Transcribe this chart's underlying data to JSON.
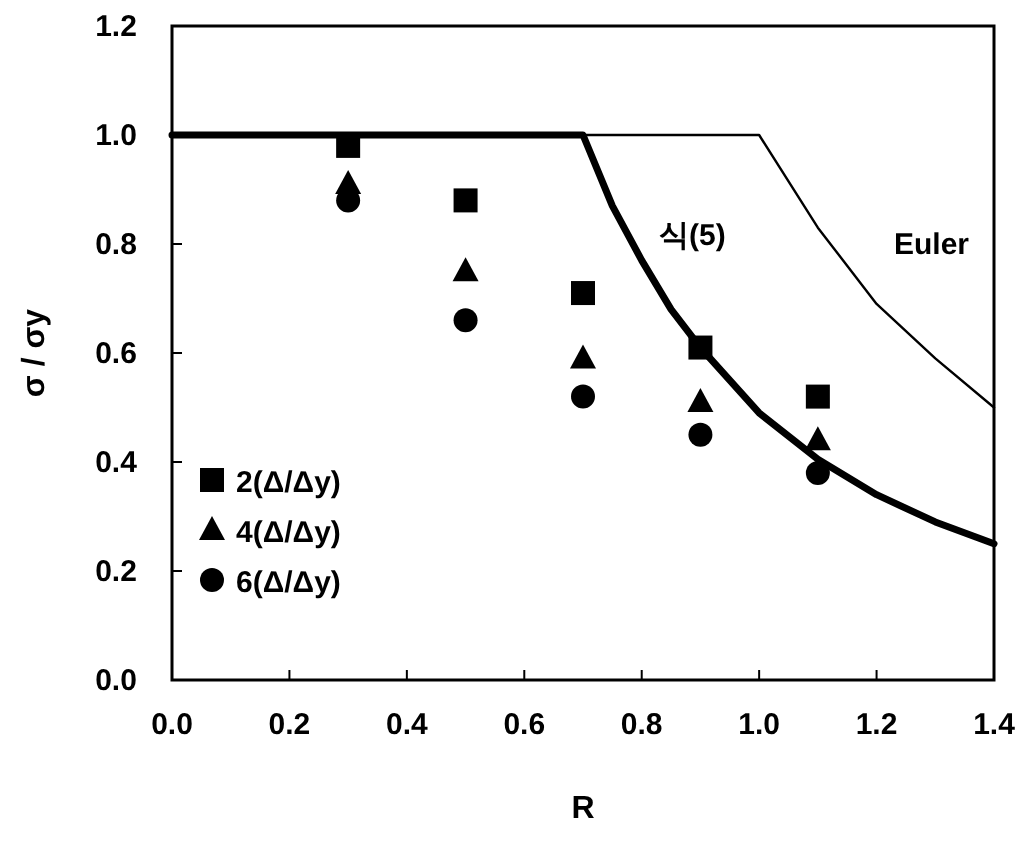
{
  "chart_data": {
    "type": "scatter",
    "xlabel": "R",
    "ylabel": "σ / σy",
    "xlim": [
      0,
      1.4
    ],
    "ylim": [
      0,
      1.2
    ],
    "xticks": [
      {
        "value": 0,
        "label": "0.0"
      },
      0.2,
      0.4,
      0.6,
      0.8,
      {
        "value": 1,
        "label": "1.0"
      },
      1.2,
      1.4
    ],
    "yticks": [
      {
        "value": 0,
        "label": "0.0"
      },
      0.2,
      0.4,
      0.6,
      0.8,
      {
        "value": 1,
        "label": "1.0"
      },
      1.2
    ],
    "grid": false,
    "legend": "bottom left",
    "series": [
      {
        "name": "2(Δ/Δy)",
        "color": "#000000",
        "marker": "square",
        "x": [
          0.3,
          0.5,
          0.7,
          0.9,
          1.1
        ],
        "values": [
          0.98,
          0.88,
          0.71,
          0.61,
          0.52
        ]
      },
      {
        "name": "4(Δ/Δy)",
        "color": "#000000",
        "marker": "triangle",
        "x": [
          0.3,
          0.5,
          0.7,
          0.9,
          1.1
        ],
        "values": [
          0.91,
          0.75,
          0.59,
          0.51,
          0.44
        ]
      },
      {
        "name": "6(Δ/Δy)",
        "color": "#000000",
        "marker": "circle",
        "x": [
          0.3,
          0.5,
          0.7,
          0.9,
          1.1
        ],
        "values": [
          0.88,
          0.66,
          0.52,
          0.45,
          0.38
        ]
      },
      {
        "name": "식(5)",
        "type": "line",
        "color": "#000000",
        "x": [
          0,
          0.7,
          0.75,
          0.8,
          0.85,
          0.9,
          1.0,
          1.1,
          1.2,
          1.3,
          1.4
        ],
        "values": [
          1,
          1,
          0.87,
          0.77,
          0.68,
          0.61,
          0.49,
          0.405,
          0.34,
          0.29,
          0.25
        ]
      },
      {
        "name": "Euler",
        "type": "line",
        "color": "#000000",
        "x": [
          0,
          1.0,
          1.1,
          1.2,
          1.3,
          1.4
        ],
        "values": [
          1,
          1,
          0.83,
          0.69,
          0.59,
          0.5
        ]
      }
    ]
  }
}
